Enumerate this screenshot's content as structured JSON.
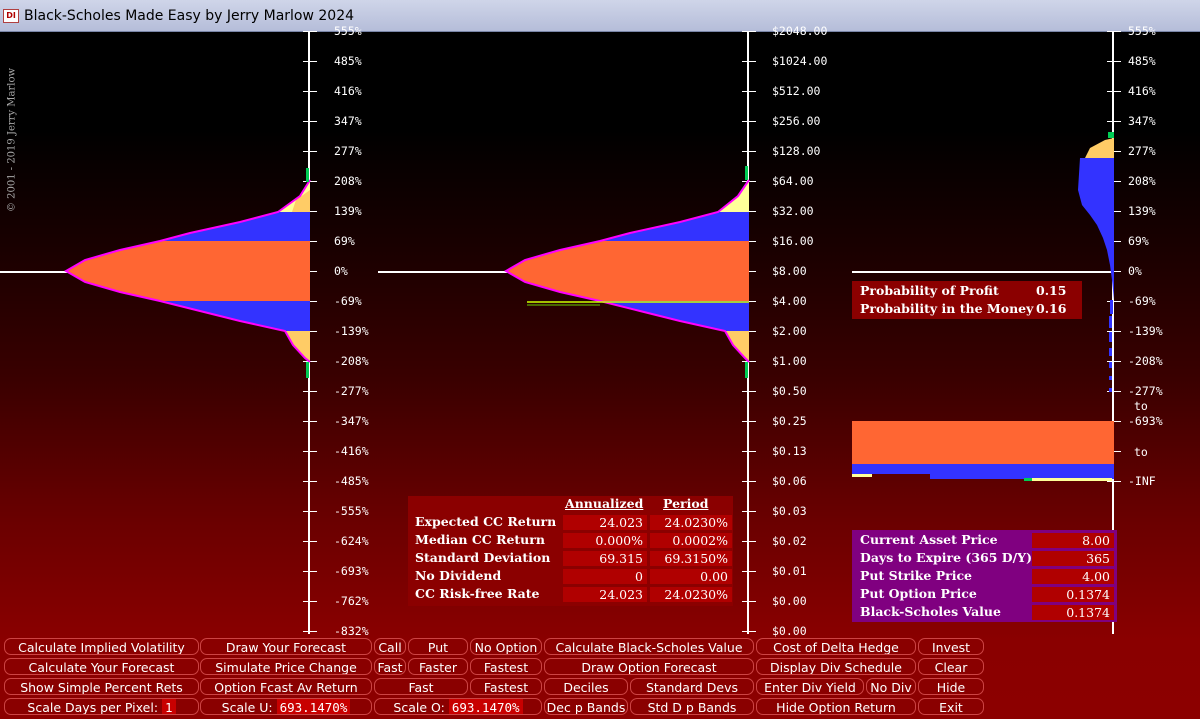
{
  "window": {
    "title": "Black-Scholes Made Easy by Jerry Marlow  2024",
    "icon": "DI"
  },
  "copyright": "© 2001 - 2019   Jerry Marlow",
  "axis_percent": [
    "555%",
    "485%",
    "416%",
    "347%",
    "277%",
    "208%",
    "139%",
    "69%",
    "0%",
    "-69%",
    "-139%",
    "-208%",
    "-277%",
    "-347%",
    "-416%",
    "-485%",
    "-555%",
    "-624%",
    "-693%",
    "-762%",
    "-832%"
  ],
  "axis_price": [
    "$2048.00",
    "$1024.00",
    "$512.00",
    "$256.00",
    "$128.00",
    "$64.00",
    "$32.00",
    "$16.00",
    "$8.00",
    "$4.00",
    "$2.00",
    "$1.00",
    "$0.50",
    "$0.25",
    "$0.13",
    "$0.06",
    "$0.03",
    "$0.02",
    "$0.01",
    "$0.00",
    "$0.00"
  ],
  "axis_right": [
    "555%",
    "485%",
    "416%",
    "347%",
    "277%",
    "208%",
    "139%",
    "69%",
    "0%",
    "-69%",
    "-139%",
    "-208%",
    "-277%",
    "-693%",
    "",
    "-INF"
  ],
  "axis_right_extra": {
    "to1": "to",
    "to2": "to"
  },
  "probability": {
    "profit_label": "Probability of Profit",
    "profit_value": "0.15",
    "money_label": "Probability in the Money",
    "money_value": "0.16"
  },
  "stats": {
    "col1": "Annualized",
    "col2": "Period",
    "rows": [
      {
        "label": "Expected CC Return",
        "a": "24.023",
        "p": "24.0230%"
      },
      {
        "label": "Median CC Return",
        "a": "0.000%",
        "p": "0.0002%"
      },
      {
        "label": "Standard Deviation",
        "a": "69.315",
        "p": "69.3150%"
      },
      {
        "label": "No Dividend",
        "a": "0",
        "p": "0.00"
      },
      {
        "label": "CC Risk-free Rate",
        "a": "24.023",
        "p": "24.0230%"
      }
    ]
  },
  "option": {
    "rows": [
      {
        "label": "Current Asset Price",
        "v": "8.00"
      },
      {
        "label": "Days to Expire  (365 D/Y)",
        "v": "365"
      },
      {
        "label": "Put Strike Price",
        "v": "4.00"
      },
      {
        "label": "Put Option Price",
        "v": "0.1374"
      },
      {
        "label": "Black-Scholes Value",
        "v": "0.1374"
      }
    ]
  },
  "buttons": {
    "calc_iv": "Calculate Implied Volatility",
    "draw_forecast": "Draw Your Forecast",
    "call": "Call",
    "put": "Put",
    "no_option": "No Option",
    "calc_bs": "Calculate Black-Scholes Value",
    "cost_delta": "Cost of Delta Hedge",
    "invest": "Invest",
    "calc_forecast": "Calculate Your Forecast",
    "simulate": "Simulate Price Change",
    "fast1": "Fast",
    "faster": "Faster",
    "fastest1": "Fastest",
    "draw_option": "Draw Option Forecast",
    "div_schedule": "Display Div Schedule",
    "clear": "Clear",
    "show_simple": "Show Simple Percent Rets",
    "option_fcast": "Option Fcast Av Return",
    "fast2": "Fast",
    "fastest2": "Fastest",
    "deciles": "Deciles",
    "std_devs": "Standard Devs",
    "enter_div": "Enter Div Yield",
    "no_div": "No Div",
    "hide": "Hide",
    "scale_days": "Scale Days per Pixel:",
    "scale_days_val": "1",
    "scale_u": "Scale U:",
    "scale_u_val": "693.1470%",
    "scale_o": "Scale O:",
    "scale_o_val": "693.1470%",
    "dec_bands": "Dec p Bands",
    "std_bands": "Std D p Bands",
    "hide_option": "Hide Option Return",
    "exit": "Exit"
  },
  "colors": {
    "orange": "#ff6633",
    "blue": "#3333ff",
    "yellow": "#ffcc66",
    "cream": "#ffff99",
    "magenta": "#ff00ff",
    "green": "#00ff66",
    "purple": "#800080"
  }
}
